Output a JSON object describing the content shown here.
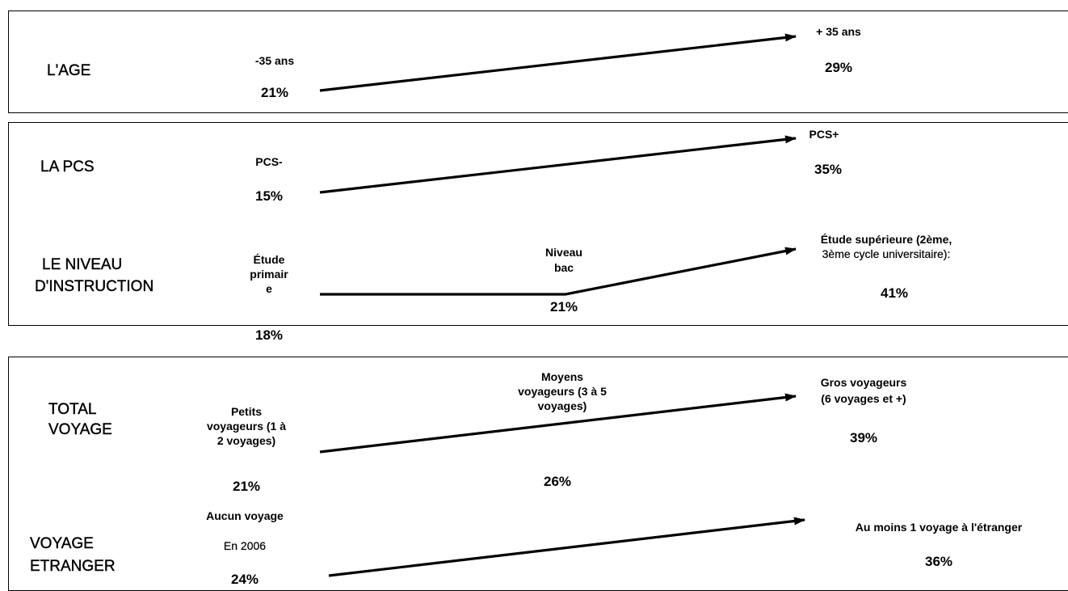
{
  "rows": {
    "age": {
      "category": "L'AGE",
      "low_label": "-35 ans",
      "low_value": "21%",
      "high_label": "+ 35 ans",
      "high_value": "29%"
    },
    "pcs": {
      "category": "LA PCS",
      "low_label": "PCS-",
      "low_value": "15%",
      "high_label": "PCS+",
      "high_value": "35%"
    },
    "instruction": {
      "category_line1": "LE NIVEAU",
      "category_line2": "D'INSTRUCTION",
      "low_label_line1": "Étude",
      "low_label_line2": "primair",
      "low_label_line3": "e",
      "low_value": "18%",
      "mid_label_line1": "Niveau",
      "mid_label_line2": "bac",
      "mid_value": "21%",
      "high_label_line1": "Étude supérieure (2ème,",
      "high_label_line2": "3ème cycle universitaire):",
      "high_value": "41%"
    },
    "total_voyage": {
      "category_line1": "TOTAL",
      "category_line2": "VOYAGE",
      "low_label_line1": "Petits",
      "low_label_line2": "voyageurs (1 à",
      "low_label_line3": "2 voyages)",
      "low_value": "21%",
      "mid_label_line1": "Moyens",
      "mid_label_line2": "voyageurs (3 à 5",
      "mid_label_line3": "voyages)",
      "mid_value": "26%",
      "high_label_line1": "Gros voyageurs",
      "high_label_line2": "(6 voyages et +)",
      "high_value": "39%"
    },
    "voyage_etranger": {
      "category_line1": "VOYAGE",
      "category_line2": "ETRANGER",
      "low_label_line1": "Aucun voyage",
      "low_label_line2": "En 2006",
      "low_value": "24%",
      "high_label": "Au moins 1 voyage à l'étranger",
      "high_value": "36%"
    }
  }
}
